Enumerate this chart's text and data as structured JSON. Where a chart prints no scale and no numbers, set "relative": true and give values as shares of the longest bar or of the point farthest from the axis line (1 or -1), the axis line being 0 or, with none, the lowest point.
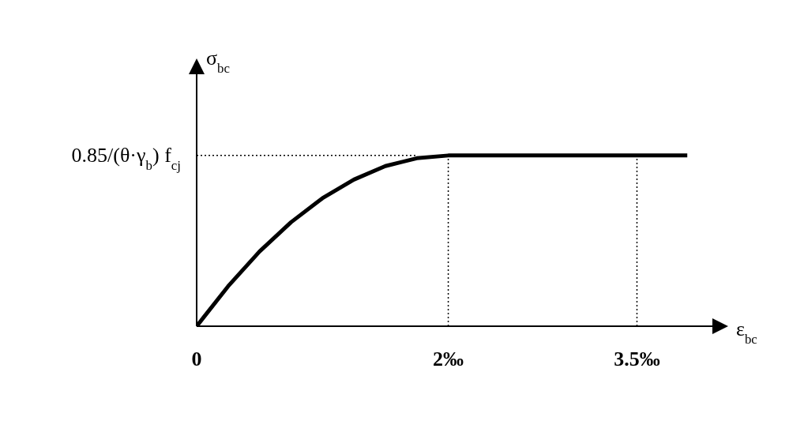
{
  "chart_data": {
    "type": "line",
    "relative": true,
    "xlabel": "ε$_{bc}$",
    "ylabel": "σ$_{bc}$",
    "x": [
      0,
      0.25,
      0.5,
      0.75,
      1,
      1.25,
      1.5,
      1.75,
      2,
      3.9
    ],
    "series": [
      {
        "color": "#000000",
        "values": [
          0,
          0.234,
          0.438,
          0.609,
          0.75,
          0.859,
          0.938,
          0.984,
          1,
          1
        ]
      }
    ],
    "xlim": [
      0,
      4.2
    ],
    "xticks": [
      0,
      {
        "value": 2,
        "label": "2‰"
      },
      {
        "value": 3.5,
        "label": "3.5‰"
      }
    ],
    "ref_lines": [
      {
        "axis": "y",
        "value": 1,
        "label": "0.85/(θ·γ$_{b}$) f$_{cj}$",
        "line_style": "dotted"
      },
      {
        "axis": "x",
        "value": 2,
        "line_style": "dotted"
      },
      {
        "axis": "x",
        "value": 3.5,
        "line_style": "dotted"
      }
    ],
    "grid": false,
    "legend": false,
    "marker": "none",
    "line_style": "solid"
  }
}
